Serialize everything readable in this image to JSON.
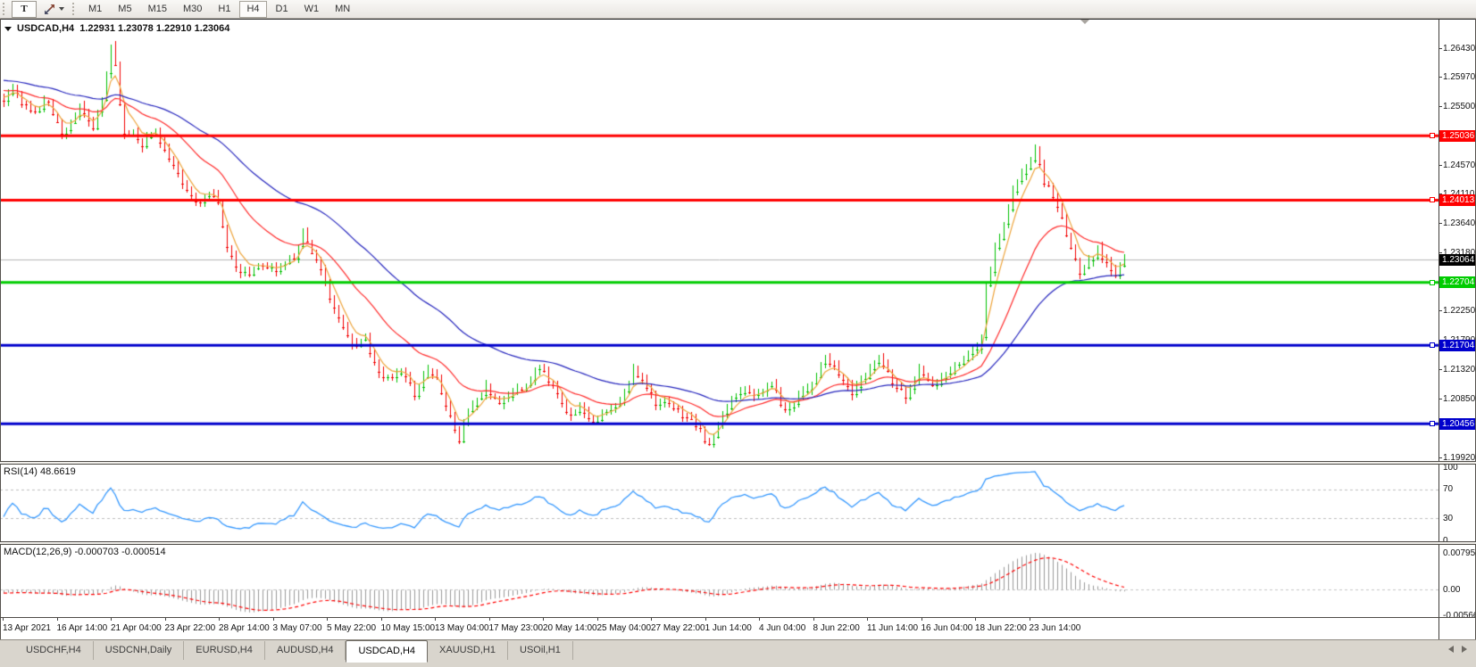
{
  "toolbar": {
    "text_tool_label": "T",
    "timeframes": [
      "M1",
      "M5",
      "M15",
      "M30",
      "H1",
      "H4",
      "D1",
      "W1",
      "MN"
    ],
    "active_timeframe": "H4"
  },
  "chart": {
    "title_symbol": "USDCAD,H4",
    "ohlc_text": "1.22931 1.23078 1.22910 1.23064",
    "open": "1.22931",
    "high": "1.23078",
    "low": "1.22910",
    "close": "1.23064",
    "current_price": "1.23064"
  },
  "price_axis": {
    "ticks": [
      "1.26430",
      "1.25970",
      "1.25500",
      "1.24570",
      "1.24110",
      "1.23640",
      "1.23180",
      "1.22250",
      "1.21790",
      "1.21320",
      "1.20850",
      "1.20390",
      "1.19920"
    ]
  },
  "rsi": {
    "label": "RSI(14) 48.6619",
    "period": 14,
    "value": "48.6619",
    "levels": [
      "100",
      "70",
      "30",
      "0"
    ],
    "line_color": "#3598fe",
    "level_line_color": "#bdbdbd"
  },
  "macd": {
    "label": "MACD(12,26,9) -0.000703 -0.000514",
    "fast": 12,
    "slow": 26,
    "signal": 9,
    "values": [
      "-0.000703",
      "-0.000514"
    ],
    "axis_labels": [
      "0.007959",
      "0.00",
      "-0.005663"
    ],
    "histogram_color": "#9a9a9a",
    "signal_color": "#ff0000"
  },
  "time_axis": {
    "labels": [
      "13 Apr 2021",
      "16 Apr 14:00",
      "21 Apr 04:00",
      "23 Apr 22:00",
      "28 Apr 14:00",
      "3 May 07:00",
      "5 May 22:00",
      "10 May 15:00",
      "13 May 04:00",
      "17 May 23:00",
      "20 May 14:00",
      "25 May 04:00",
      "27 May 22:00",
      "1 Jun 14:00",
      "4 Jun 04:00",
      "8 Jun 22:00",
      "11 Jun 14:00",
      "16 Jun 04:00",
      "18 Jun 22:00",
      "23 Jun 14:00"
    ]
  },
  "tabs": {
    "items": [
      "USDCHF,H4",
      "USDCNH,Daily",
      "EURUSD,H4",
      "AUDUSD,H4",
      "USDCAD,H4",
      "XAUUSD,H1",
      "USOil,H1"
    ],
    "active": "USDCAD,H4"
  },
  "chart_data": {
    "type": "candlestick",
    "symbol": "USDCAD",
    "timeframe": "H4",
    "title": "USDCAD,H4 1.22931 1.23078 1.22910 1.23064",
    "bar_count": 252,
    "seed": 11,
    "last_close": 1.23064,
    "bull_color": "#00c000",
    "bear_color": "#f20000",
    "current_price_line": {
      "label": "1.23064",
      "value": 1.23064,
      "line_color": "#b4b4b4",
      "tag_color": "#000000"
    },
    "axis_ref": {
      "price_a": 1.2643,
      "price_b": 1.1992
    },
    "horizontal_lines": [
      {
        "label": "1.25036",
        "value": 1.25036,
        "color": "#ff0000"
      },
      {
        "label": "1.24013",
        "value": 1.24013,
        "color": "#ff0000"
      },
      {
        "label": "1.22704",
        "value": 1.22704,
        "color": "#00cc00"
      },
      {
        "label": "1.21704",
        "value": 1.21704,
        "color": "#0000cc"
      },
      {
        "label": "1.20456",
        "value": 1.20456,
        "color": "#0000cc"
      }
    ],
    "moving_averages": [
      {
        "period": 5,
        "color": "#eda43b"
      },
      {
        "period": 21,
        "color": "#ff2a2a"
      },
      {
        "period": 50,
        "color": "#2525bd"
      }
    ],
    "close_anchors": [
      [
        0,
        1.256
      ],
      [
        2,
        1.2585
      ],
      [
        4,
        1.2555
      ],
      [
        7,
        1.2541
      ],
      [
        10,
        1.2561
      ],
      [
        13,
        1.2506
      ],
      [
        15,
        1.2526
      ],
      [
        17,
        1.2546
      ],
      [
        20,
        1.2516
      ],
      [
        22,
        1.256
      ],
      [
        24,
        1.2648
      ],
      [
        25,
        1.2616
      ],
      [
        27,
        1.2502
      ],
      [
        29,
        1.2513
      ],
      [
        31,
        1.2491
      ],
      [
        34,
        1.2512
      ],
      [
        37,
        1.2466
      ],
      [
        40,
        1.2426
      ],
      [
        43,
        1.2399
      ],
      [
        46,
        1.2409
      ],
      [
        48,
        1.2396
      ],
      [
        50,
        1.2331
      ],
      [
        52,
        1.2291
      ],
      [
        55,
        1.2284
      ],
      [
        58,
        1.2301
      ],
      [
        61,
        1.2289
      ],
      [
        63,
        1.2304
      ],
      [
        65,
        1.2311
      ],
      [
        67,
        1.2353
      ],
      [
        69,
        1.2321
      ],
      [
        72,
        1.2269
      ],
      [
        75,
        1.2211
      ],
      [
        78,
        1.2171
      ],
      [
        81,
        1.2183
      ],
      [
        83,
        1.2141
      ],
      [
        86,
        1.2115
      ],
      [
        89,
        1.2127
      ],
      [
        92,
        1.2095
      ],
      [
        95,
        1.2131
      ],
      [
        97,
        1.2119
      ],
      [
        100,
        1.2059
      ],
      [
        102,
        1.2019
      ],
      [
        104,
        1.2067
      ],
      [
        108,
        1.2101
      ],
      [
        111,
        1.2081
      ],
      [
        114,
        1.2095
      ],
      [
        117,
        1.2111
      ],
      [
        120,
        1.2137
      ],
      [
        123,
        1.2105
      ],
      [
        126,
        1.2061
      ],
      [
        129,
        1.2073
      ],
      [
        132,
        1.2051
      ],
      [
        135,
        1.2065
      ],
      [
        138,
        1.2077
      ],
      [
        141,
        1.2129
      ],
      [
        143,
        1.2119
      ],
      [
        146,
        1.2081
      ],
      [
        149,
        1.2075
      ],
      [
        152,
        1.2061
      ],
      [
        155,
        1.2045
      ],
      [
        158,
        1.2009
      ],
      [
        160,
        1.2041
      ],
      [
        163,
        1.2087
      ],
      [
        166,
        1.2105
      ],
      [
        169,
        1.2091
      ],
      [
        172,
        1.2111
      ],
      [
        175,
        1.2065
      ],
      [
        178,
        1.2091
      ],
      [
        181,
        1.2111
      ],
      [
        184,
        1.2149
      ],
      [
        187,
        1.2125
      ],
      [
        190,
        1.2095
      ],
      [
        193,
        1.2121
      ],
      [
        196,
        1.2155
      ],
      [
        199,
        1.2115
      ],
      [
        202,
        1.2091
      ],
      [
        205,
        1.2131
      ],
      [
        208,
        1.2105
      ],
      [
        211,
        1.2121
      ],
      [
        214,
        1.2145
      ],
      [
        217,
        1.2161
      ],
      [
        219,
        1.2179
      ],
      [
        220,
        1.2261
      ],
      [
        222,
        1.2321
      ],
      [
        224,
        1.2361
      ],
      [
        226,
        1.2411
      ],
      [
        228,
        1.2443
      ],
      [
        230,
        1.2466
      ],
      [
        231,
        1.2481
      ],
      [
        233,
        1.2433
      ],
      [
        235,
        1.2411
      ],
      [
        237,
        1.2371
      ],
      [
        239,
        1.2321
      ],
      [
        241,
        1.2289
      ],
      [
        243,
        1.2309
      ],
      [
        245,
        1.2321
      ],
      [
        247,
        1.2301
      ],
      [
        249,
        1.2283
      ],
      [
        251,
        1.23064
      ]
    ]
  }
}
